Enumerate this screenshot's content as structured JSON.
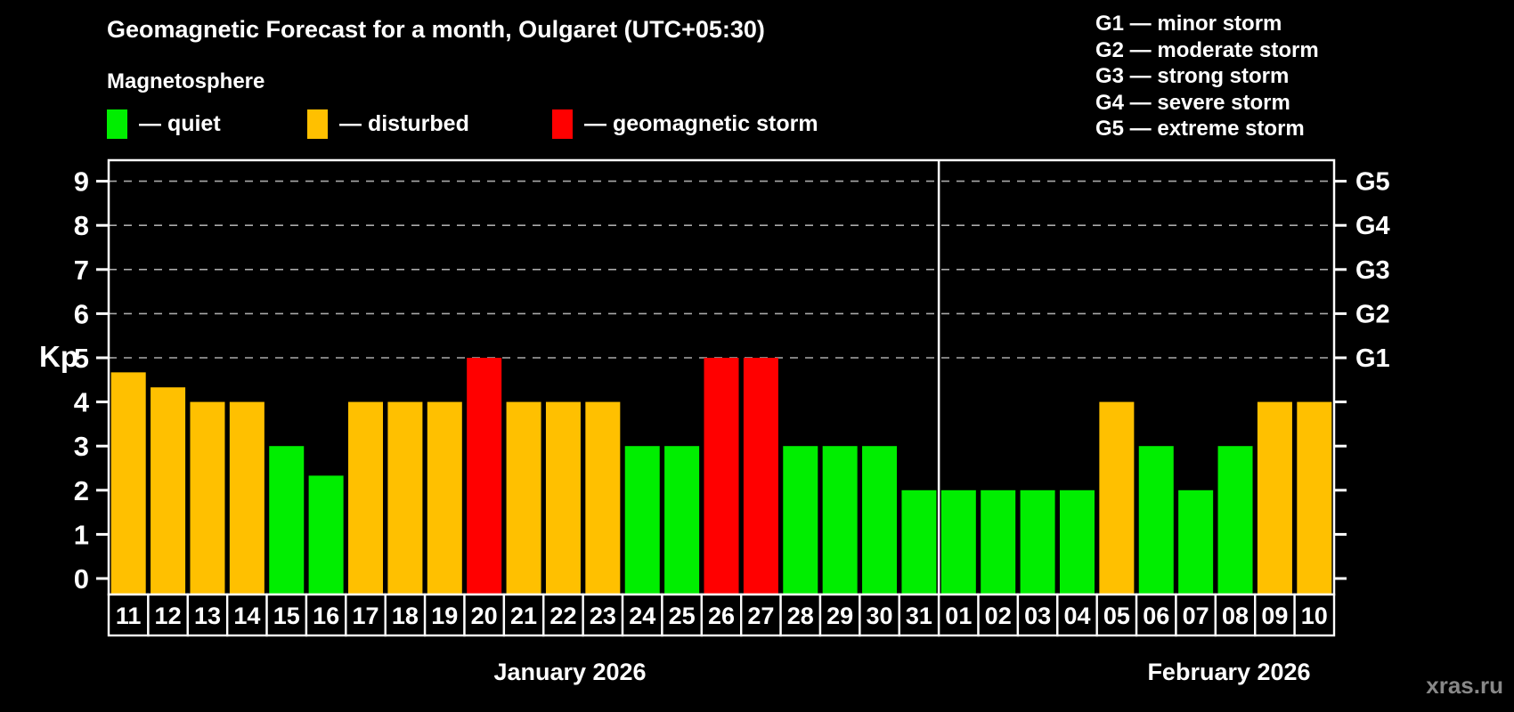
{
  "header": {
    "title": "Geomagnetic Forecast for a month, Oulgaret (UTC+05:30)",
    "subtitle": "Magnetosphere"
  },
  "legend": {
    "quiet_label": "— quiet",
    "disturbed_label": "— disturbed",
    "storm_label": "— geomagnetic storm"
  },
  "g_legend": {
    "items": [
      "G1 — minor storm",
      "G2 — moderate storm",
      "G3 — strong storm",
      "G4 — severe storm",
      "G5 — extreme storm"
    ]
  },
  "colors": {
    "quiet": "#00ee00",
    "disturbed": "#ffc000",
    "storm": "#ff0000",
    "axis": "#ffffff",
    "grid": "#aaaaaa",
    "background": "#000000",
    "watermark": "#888888"
  },
  "watermark": "xras.ru",
  "chart_data": {
    "type": "bar",
    "title": "Geomagnetic Forecast for a month, Oulgaret (UTC+05:30)",
    "ylabel": "Kp",
    "ylim": [
      0,
      9.4
    ],
    "yticks": [
      0,
      1,
      2,
      3,
      4,
      5,
      6,
      7,
      8,
      9
    ],
    "gridlines_at": [
      5,
      6,
      7,
      8,
      9
    ],
    "grid_style": "dashed horizontal, G-storm levels only",
    "legend_position": "top-left and top-right",
    "right_axis_labels": [
      {
        "value": 5,
        "label": "G1"
      },
      {
        "value": 6,
        "label": "G2"
      },
      {
        "value": 7,
        "label": "G3"
      },
      {
        "value": 8,
        "label": "G4"
      },
      {
        "value": 9,
        "label": "G5"
      }
    ],
    "categories": [
      "11",
      "12",
      "13",
      "14",
      "15",
      "16",
      "17",
      "18",
      "19",
      "20",
      "21",
      "22",
      "23",
      "24",
      "25",
      "26",
      "27",
      "28",
      "29",
      "30",
      "31",
      "01",
      "02",
      "03",
      "04",
      "05",
      "06",
      "07",
      "08",
      "09",
      "10"
    ],
    "values": [
      4.67,
      4.33,
      4,
      4,
      3,
      2.33,
      4,
      4,
      4,
      5,
      4,
      4,
      4,
      3,
      3,
      5,
      5,
      3,
      3,
      3,
      2,
      2,
      2,
      2,
      2,
      4,
      3,
      2,
      3,
      4,
      4
    ],
    "statuses": [
      "disturbed",
      "disturbed",
      "disturbed",
      "disturbed",
      "quiet",
      "quiet",
      "disturbed",
      "disturbed",
      "disturbed",
      "storm",
      "disturbed",
      "disturbed",
      "disturbed",
      "quiet",
      "quiet",
      "storm",
      "storm",
      "quiet",
      "quiet",
      "quiet",
      "quiet",
      "quiet",
      "quiet",
      "quiet",
      "quiet",
      "disturbed",
      "quiet",
      "quiet",
      "quiet",
      "disturbed",
      "disturbed"
    ],
    "months": [
      {
        "label": "January 2026",
        "span_days": 21
      },
      {
        "label": "February 2026",
        "span_days": 10
      }
    ]
  }
}
